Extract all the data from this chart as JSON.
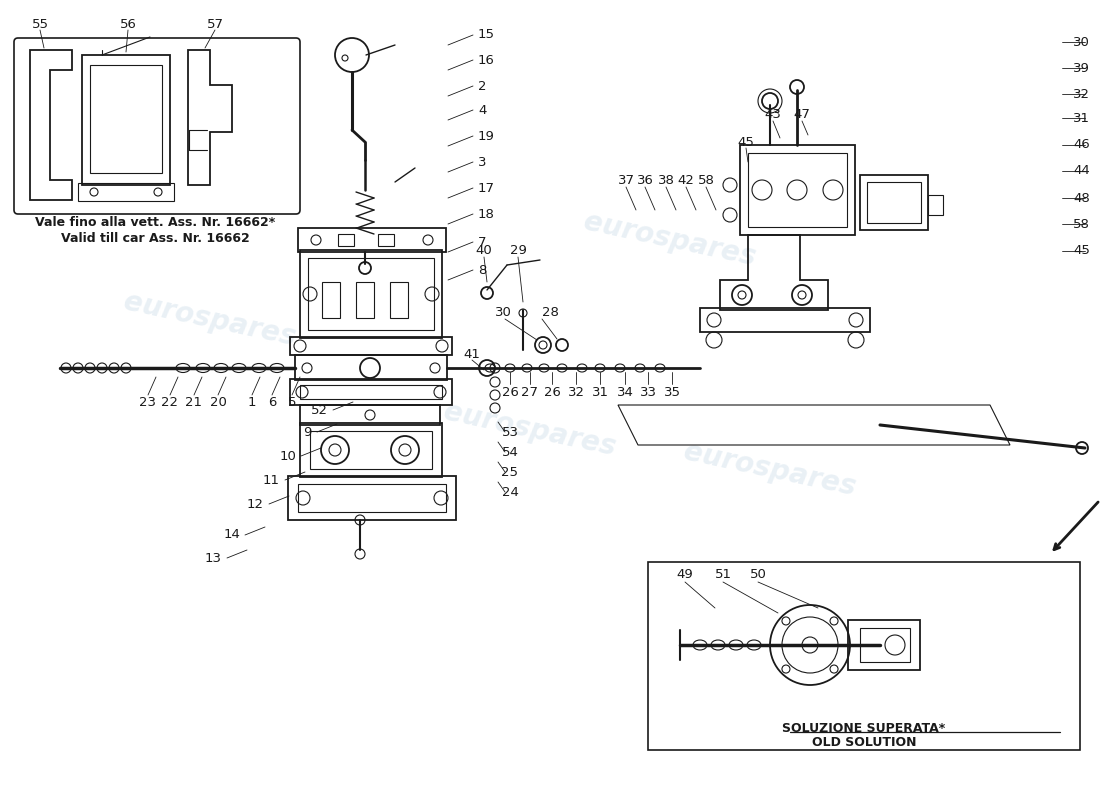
{
  "bg_color": "#ffffff",
  "line_color": "#1a1a1a",
  "watermark_text": "eurospares",
  "watermark_color": "#b8cfe0",
  "watermark_alpha": 0.3,
  "label_fontsize": 9.5,
  "note_fontsize": 9.0,
  "note_text_line1": "Vale fino alla vett. Ass. Nr. 16662*",
  "note_text_line2": "Valid till car Ass. Nr. 16662",
  "old_text_line1": "SOLUZIONE SUPERATA*",
  "old_text_line2": "OLD SOLUTION"
}
